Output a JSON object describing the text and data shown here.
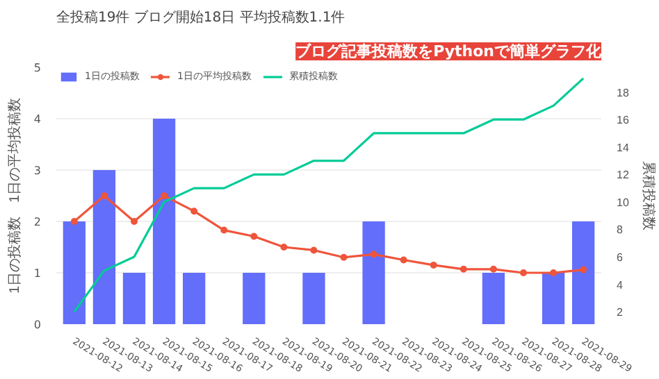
{
  "chart_data": {
    "type": "bar",
    "title": "全投稿19件 ブログ開始18日 平均投稿数1.1件",
    "subtitle": "ブログ記事投稿数をPythonで簡単グラフ化",
    "categories": [
      "2021-08-12",
      "2021-08-13",
      "2021-08-14",
      "2021-08-15",
      "2021-08-16",
      "2021-08-17",
      "2021-08-18",
      "2021-08-19",
      "2021-08-20",
      "2021-08-21",
      "2021-08-22",
      "2021-08-23",
      "2021-08-24",
      "2021-08-25",
      "2021-08-26",
      "2021-08-27",
      "2021-08-28",
      "2021-08-29"
    ],
    "series": [
      {
        "name": "1日の投稿数",
        "color": "#636efa",
        "values": [
          2,
          3,
          1,
          4,
          1,
          0,
          1,
          0,
          1,
          0,
          2,
          0,
          0,
          0,
          1,
          0,
          1,
          2
        ]
      },
      {
        "name": "1日の平均投稿数",
        "type": "line",
        "color": "#ef553b",
        "marker": "circle",
        "values": [
          2,
          2.5,
          2,
          2.5,
          2.2,
          1.83,
          1.71,
          1.5,
          1.44,
          1.3,
          1.36,
          1.25,
          1.15,
          1.07,
          1.07,
          1.0,
          1.0,
          1.06
        ]
      },
      {
        "name": "累積投稿数",
        "type": "line",
        "color": "#00cc96",
        "axis": "y2",
        "values": [
          2,
          5,
          6,
          10,
          11,
          11,
          12,
          12,
          13,
          13,
          15,
          15,
          15,
          15,
          16,
          16,
          17,
          19
        ]
      }
    ],
    "ylabel": "1日の投稿数　1日の平均投稿数",
    "y2label": "累積投稿数",
    "ylim": [
      0,
      5
    ],
    "yticks": [
      0,
      1,
      2,
      3,
      4,
      5
    ],
    "y2lim": [
      1.1,
      19.8
    ],
    "y2ticks": [
      2,
      4,
      6,
      8,
      10,
      12,
      14,
      16,
      18
    ],
    "grid": "y",
    "legend": "top left"
  }
}
